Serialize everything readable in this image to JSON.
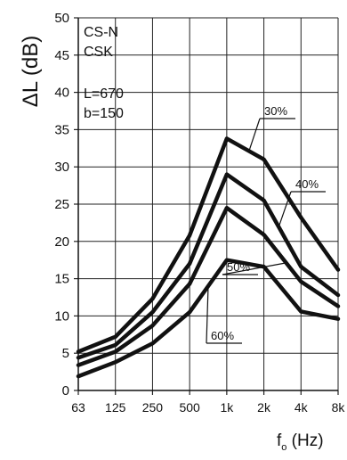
{
  "chart_data": {
    "type": "line",
    "x": [
      "63",
      "125",
      "250",
      "500",
      "1k",
      "2k",
      "4k",
      "8k"
    ],
    "ylim": [
      0,
      50
    ],
    "yticks": [
      "0",
      "5",
      "10",
      "15",
      "20",
      "25",
      "30",
      "35",
      "40",
      "45",
      "50"
    ],
    "ylabel": "ΔL (dB)",
    "xlabel_main": "f",
    "xlabel_sub": "o",
    "xlabel_unit": " (Hz)",
    "grid": true,
    "annotations": [
      "CS-N",
      "CSK",
      "L=670",
      "b=150"
    ],
    "series": [
      {
        "name": "30%",
        "values": [
          5.2,
          7.2,
          12.3,
          20.8,
          33.8,
          31.0,
          23.2,
          16.2
        ]
      },
      {
        "name": "40%",
        "values": [
          4.4,
          6.1,
          10.5,
          17.0,
          29.0,
          25.5,
          16.6,
          12.8
        ]
      },
      {
        "name": "50%",
        "values": [
          3.4,
          5.2,
          8.7,
          14.3,
          24.5,
          20.9,
          14.6,
          11.3
        ]
      },
      {
        "name": "60%",
        "values": [
          1.9,
          3.8,
          6.3,
          10.5,
          17.5,
          16.6,
          10.6,
          9.6
        ]
      }
    ],
    "series_colors": [
      "#111111"
    ]
  }
}
